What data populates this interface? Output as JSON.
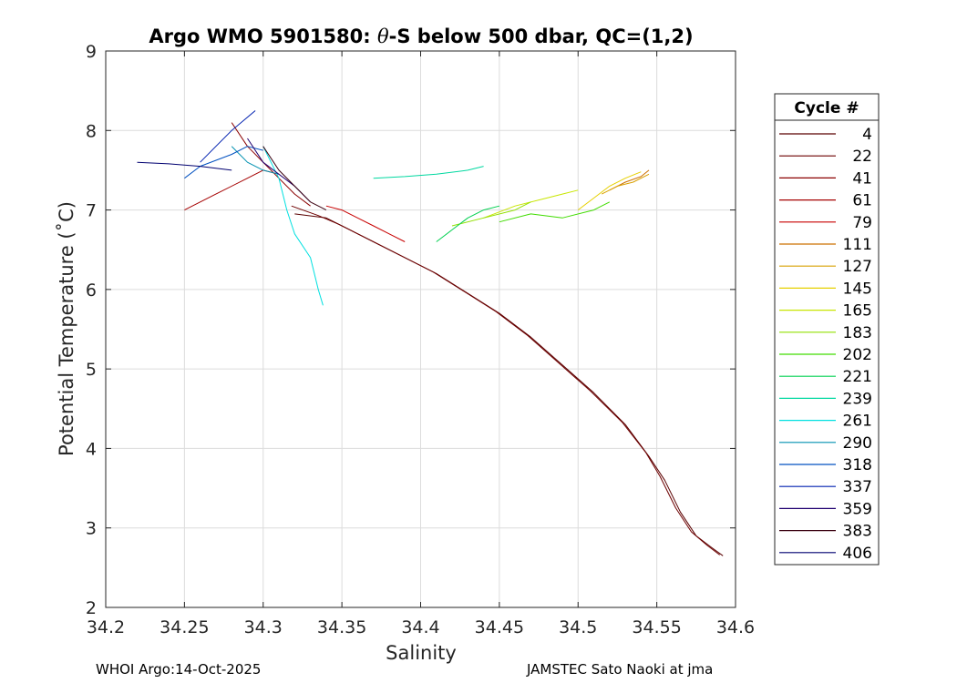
{
  "chart_data": {
    "type": "line",
    "title": "Argo WMO 5901580: θ-S below 500 dbar,  QC=(1,2)",
    "title_prefix": "Argo WMO 5901580: ",
    "title_symbol": "θ",
    "title_suffix": "-S below 500 dbar,  QC=(1,2)",
    "xlabel": "Salinity",
    "ylabel": "Potential Temperature (˚C)",
    "xlim": [
      34.2,
      34.6
    ],
    "ylim": [
      2,
      9
    ],
    "xticks": [
      34.2,
      34.25,
      34.3,
      34.35,
      34.4,
      34.45,
      34.5,
      34.55,
      34.6
    ],
    "xtick_labels": [
      "34.2",
      "34.25",
      "34.3",
      "34.35",
      "34.4",
      "34.45",
      "34.5",
      "34.55",
      "34.6"
    ],
    "yticks": [
      2,
      3,
      4,
      5,
      6,
      7,
      8,
      9
    ],
    "ytick_labels": [
      "2",
      "3",
      "4",
      "5",
      "6",
      "7",
      "8",
      "9"
    ],
    "grid": true,
    "legend_title": "Cycle #",
    "legend_position": "outside-right",
    "series": [
      {
        "name": "4",
        "color": "#5a0000",
        "x": [
          34.592,
          34.585,
          34.575,
          34.565,
          34.555,
          34.545,
          34.53,
          34.51,
          34.49,
          34.47,
          34.45,
          34.43,
          34.41,
          34.39,
          34.37,
          34.35,
          34.34,
          34.32
        ],
        "y": [
          2.65,
          2.75,
          2.9,
          3.2,
          3.6,
          3.9,
          4.3,
          4.7,
          5.05,
          5.4,
          5.7,
          5.95,
          6.2,
          6.4,
          6.6,
          6.8,
          6.9,
          6.95
        ]
      },
      {
        "name": "22",
        "color": "#6e0000",
        "x": [
          34.59,
          34.582,
          34.572,
          34.562,
          34.552,
          34.543,
          34.528,
          34.508,
          34.488,
          34.468,
          34.448,
          34.428,
          34.408,
          34.388,
          34.368,
          34.348,
          34.335,
          34.318
        ],
        "y": [
          2.66,
          2.78,
          2.95,
          3.25,
          3.65,
          3.95,
          4.33,
          4.72,
          5.07,
          5.42,
          5.72,
          5.97,
          6.22,
          6.42,
          6.62,
          6.82,
          6.93,
          7.05
        ]
      },
      {
        "name": "41",
        "color": "#8b0000",
        "x": [
          34.28,
          34.29,
          34.3,
          34.31,
          34.32,
          34.33
        ],
        "y": [
          8.1,
          7.8,
          7.6,
          7.4,
          7.2,
          7.05
        ]
      },
      {
        "name": "61",
        "color": "#a50000",
        "x": [
          34.25,
          34.27,
          34.29,
          34.3,
          34.31
        ],
        "y": [
          7.0,
          7.2,
          7.4,
          7.5,
          7.45
        ]
      },
      {
        "name": "79",
        "color": "#c80000",
        "x": [
          34.34,
          34.35,
          34.36,
          34.37,
          34.38,
          34.39
        ],
        "y": [
          7.05,
          7.0,
          6.9,
          6.8,
          6.7,
          6.6
        ]
      },
      {
        "name": "111",
        "color": "#cc7000",
        "x": [
          34.52,
          34.53,
          34.54,
          34.545
        ],
        "y": [
          7.25,
          7.35,
          7.42,
          7.5
        ]
      },
      {
        "name": "127",
        "color": "#d9a000",
        "x": [
          34.515,
          34.525,
          34.535,
          34.545
        ],
        "y": [
          7.2,
          7.3,
          7.35,
          7.45
        ]
      },
      {
        "name": "145",
        "color": "#e6d000",
        "x": [
          34.5,
          34.51,
          34.52,
          34.53,
          34.54
        ],
        "y": [
          7.0,
          7.15,
          7.3,
          7.4,
          7.48
        ]
      },
      {
        "name": "165",
        "color": "#c8e600",
        "x": [
          34.44,
          34.46,
          34.48,
          34.49,
          34.5
        ],
        "y": [
          6.9,
          7.05,
          7.15,
          7.2,
          7.25
        ]
      },
      {
        "name": "183",
        "color": "#90e000",
        "x": [
          34.42,
          34.44,
          34.46,
          34.47
        ],
        "y": [
          6.8,
          6.9,
          7.0,
          7.1
        ]
      },
      {
        "name": "202",
        "color": "#40dc00",
        "x": [
          34.45,
          34.47,
          34.49,
          34.51,
          34.52
        ],
        "y": [
          6.85,
          6.95,
          6.9,
          7.0,
          7.1
        ]
      },
      {
        "name": "221",
        "color": "#00d050",
        "x": [
          34.41,
          34.42,
          34.43,
          34.44,
          34.45
        ],
        "y": [
          6.6,
          6.75,
          6.9,
          7.0,
          7.05
        ]
      },
      {
        "name": "239",
        "color": "#00d8a0",
        "x": [
          34.37,
          34.39,
          34.41,
          34.43,
          34.44
        ],
        "y": [
          7.4,
          7.42,
          7.45,
          7.5,
          7.55
        ]
      },
      {
        "name": "261",
        "color": "#00e0e0",
        "x": [
          34.3,
          34.31,
          34.315,
          34.32,
          34.33,
          34.335,
          34.338
        ],
        "y": [
          7.8,
          7.4,
          7.0,
          6.7,
          6.4,
          6.0,
          5.8
        ]
      },
      {
        "name": "290",
        "color": "#0090b0",
        "x": [
          34.28,
          34.29,
          34.3,
          34.31
        ],
        "y": [
          7.8,
          7.6,
          7.5,
          7.45
        ]
      },
      {
        "name": "318",
        "color": "#0050c0",
        "x": [
          34.25,
          34.26,
          34.28,
          34.29,
          34.3
        ],
        "y": [
          7.4,
          7.55,
          7.7,
          7.8,
          7.75
        ]
      },
      {
        "name": "337",
        "color": "#0020b0",
        "x": [
          34.26,
          34.27,
          34.28,
          34.295
        ],
        "y": [
          7.6,
          7.8,
          8.0,
          8.25
        ]
      },
      {
        "name": "359",
        "color": "#200070",
        "x": [
          34.29,
          34.3,
          34.31,
          34.32,
          34.33
        ],
        "y": [
          7.9,
          7.6,
          7.45,
          7.3,
          7.1
        ]
      },
      {
        "name": "383",
        "color": "#3a0010",
        "x": [
          34.3,
          34.31,
          34.32,
          34.33,
          34.34
        ],
        "y": [
          7.8,
          7.5,
          7.3,
          7.1,
          7.0
        ]
      },
      {
        "name": "406",
        "color": "#000070",
        "x": [
          34.22,
          34.24,
          34.26,
          34.28
        ],
        "y": [
          7.6,
          7.58,
          7.55,
          7.5
        ]
      }
    ]
  },
  "footer": {
    "left": "WHOI Argo:14-Oct-2025",
    "right": "JAMSTEC Sato Naoki at jma"
  }
}
